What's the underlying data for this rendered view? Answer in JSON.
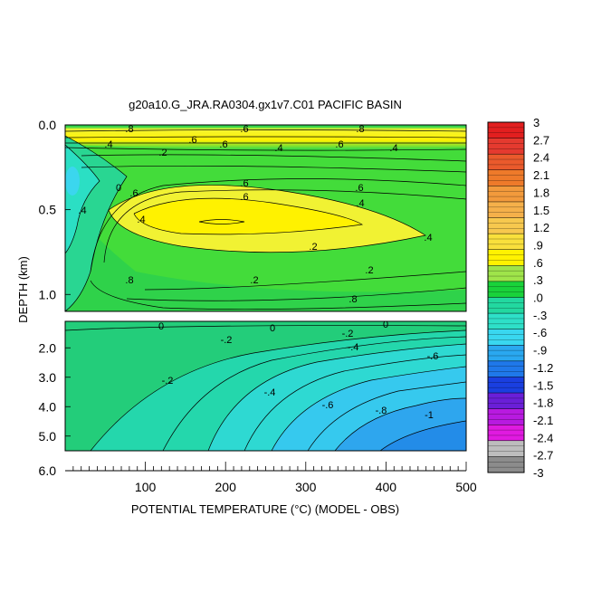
{
  "chart_data": {
    "type": "heatmap",
    "title": "g20a10.G_JRA.RA0304.gx1v7.C01 PACIFIC BASIN",
    "xlabel": "POTENTIAL TEMPERATURE (°C) (MODEL - OBS)",
    "ylabel": "DEPTH (km)",
    "xlim": [
      0,
      500
    ],
    "x_ticks": [
      "100",
      "200",
      "300",
      "400",
      "500"
    ],
    "y_ticks_upper": [
      "0.0",
      "0.5",
      "1.0"
    ],
    "y_ticks_lower": [
      "2.0",
      "3.0",
      "4.0",
      "5.0",
      "6.0"
    ],
    "upper_panel_depth_km": [
      0.0,
      1.1
    ],
    "lower_panel_depth_km": [
      1.1,
      5.5
    ],
    "colorbar": {
      "levels": [
        3,
        2.7,
        2.4,
        2.1,
        1.8,
        1.5,
        1.2,
        0.9,
        0.6,
        0.3,
        0.0,
        -0.3,
        -0.6,
        -0.9,
        -1.2,
        -1.5,
        -1.8,
        -2.1,
        -2.4,
        -2.7,
        -3
      ],
      "labels": [
        "3",
        "2.7",
        "2.4",
        "2.1",
        "1.8",
        "1.5",
        "1.2",
        ".9",
        ".6",
        ".3",
        ".0",
        "-.3",
        "-.6",
        "-.9",
        "-1.2",
        "-1.5",
        "-1.8",
        "-2.1",
        "-2.4",
        "-2.7",
        "-3"
      ],
      "colors": [
        "#e21f1f",
        "#e53a2f",
        "#ea5a2c",
        "#ee7a2a",
        "#f29a3c",
        "#f5b04a",
        "#f7c84e",
        "#f9e03c",
        "#fff200",
        "#9fe44a",
        "#19d23a",
        "#22d8a0",
        "#2ee0c8",
        "#39d7f0",
        "#2aa8f0",
        "#1f78ea",
        "#1a3fe0",
        "#6a1fd8",
        "#b81ae0",
        "#e01ae0",
        "#bdbdbd",
        "#8c8c8c"
      ]
    },
    "contour_labels_upper": [
      ".8",
      ".6",
      ".8",
      ".6",
      ".4",
      ".6",
      ".4",
      ".6",
      ".4",
      ".2",
      "0",
      ".4",
      ".6",
      ".4",
      ".6",
      ".6",
      ".6",
      ".4",
      ".4",
      ".2",
      ".2",
      ".2",
      ".8",
      ".8"
    ],
    "contour_labels_lower": [
      "0",
      "0",
      "0",
      "-.2",
      "-.2",
      "-.4",
      "-.2",
      "-.6",
      "-.4",
      "-.6",
      "-.8",
      "-1"
    ]
  }
}
